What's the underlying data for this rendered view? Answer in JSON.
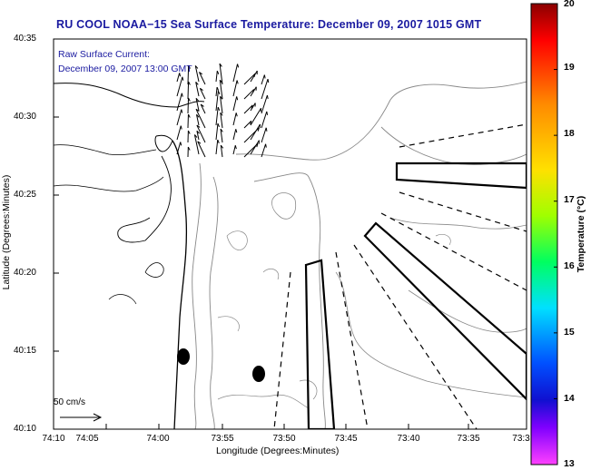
{
  "title": "RU COOL  NOAA−15  Sea Surface Temperature:  December 09, 2007 1015 GMT",
  "current_label": {
    "line1": "Raw Surface Current:",
    "line2": "December 09, 2007 13:00 GMT"
  },
  "axes": {
    "xlabel": "Longitude (Degrees:Minutes)",
    "ylabel": "Latitude (Degrees:Minutes)",
    "x_ticks": [
      "74:10",
      "74:05",
      "74:00",
      "73:55",
      "73:50",
      "73:45",
      "73:40",
      "73:35",
      "73:3"
    ],
    "y_ticks": [
      "40:35",
      "40:30",
      "40:25",
      "40:20",
      "40:15",
      "40:10"
    ]
  },
  "colorbar": {
    "label": "Temperature (°C)",
    "ticks": [
      "20",
      "19",
      "18",
      "17",
      "16",
      "15",
      "14",
      "13"
    ]
  },
  "scale_bar": {
    "label": "50 cm/s"
  },
  "colors": {
    "title": "#1a1aa0",
    "contour": "#888888",
    "coast": "#000000"
  }
}
